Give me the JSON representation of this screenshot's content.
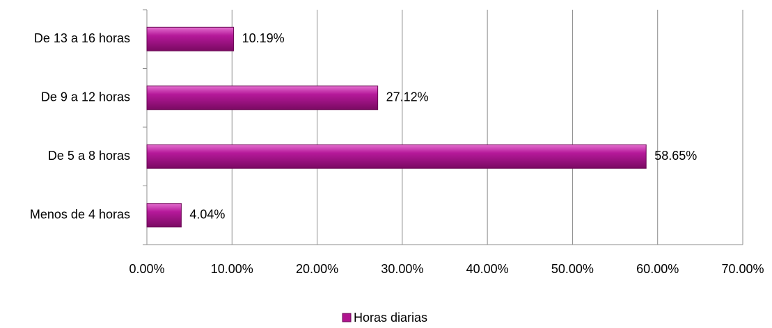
{
  "chart_data": {
    "type": "hbar",
    "categories": [
      "De 13 a 16 horas",
      "De 9 a 12 horas",
      "De 5 a 8 horas",
      "Menos de 4 horas"
    ],
    "series": [
      {
        "name": "Horas diarias",
        "color": "#b0148f",
        "values": [
          10.19,
          27.12,
          58.65,
          4.04
        ],
        "value_labels": [
          "10.19%",
          "27.12%",
          "58.65%",
          "4.04%"
        ]
      }
    ],
    "xlim": [
      0,
      70
    ],
    "xticks": [
      {
        "value": 0,
        "label": "0.00%"
      },
      {
        "value": 10,
        "label": "10.00%"
      },
      {
        "value": 20,
        "label": "20.00%"
      },
      {
        "value": 30,
        "label": "30.00%"
      },
      {
        "value": 40,
        "label": "40.00%"
      },
      {
        "value": 50,
        "label": "50.00%"
      },
      {
        "value": 60,
        "label": "60.00%"
      },
      {
        "value": 70,
        "label": "70.00%"
      }
    ],
    "grid": true,
    "legend": "bottom"
  }
}
